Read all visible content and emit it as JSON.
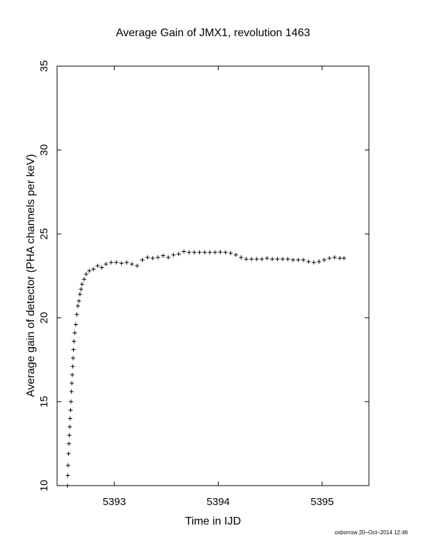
{
  "chart_data": {
    "type": "scatter",
    "title": "Average Gain of JMX1, revolution 1463",
    "xlabel": "Time in IJD",
    "ylabel": "Average gain of detector (PHA channels per keV)",
    "xlim": [
      5392.45,
      5395.45
    ],
    "ylim": [
      10,
      35
    ],
    "xticks": [
      5393,
      5394,
      5395
    ],
    "yticks": [
      10,
      15,
      20,
      25,
      30,
      35
    ],
    "marker": "plus",
    "grid": false,
    "legend": "none",
    "color": "#000000",
    "series": [
      {
        "points": [
          [
            5392.55,
            10.0
          ],
          [
            5392.553,
            10.6
          ],
          [
            5392.556,
            11.2
          ],
          [
            5392.56,
            11.9
          ],
          [
            5392.564,
            12.5
          ],
          [
            5392.568,
            13.0
          ],
          [
            5392.572,
            13.5
          ],
          [
            5392.576,
            14.0
          ],
          [
            5392.58,
            14.5
          ],
          [
            5392.584,
            15.0
          ],
          [
            5392.588,
            15.6
          ],
          [
            5392.592,
            16.1
          ],
          [
            5392.596,
            16.6
          ],
          [
            5392.6,
            17.1
          ],
          [
            5392.604,
            17.6
          ],
          [
            5392.608,
            18.1
          ],
          [
            5392.612,
            18.6
          ],
          [
            5392.62,
            19.1
          ],
          [
            5392.63,
            19.6
          ],
          [
            5392.64,
            20.2
          ],
          [
            5392.65,
            20.7
          ],
          [
            5392.66,
            21.0
          ],
          [
            5392.67,
            21.4
          ],
          [
            5392.68,
            21.7
          ],
          [
            5392.69,
            22.0
          ],
          [
            5392.71,
            22.3
          ],
          [
            5392.73,
            22.6
          ],
          [
            5392.76,
            22.8
          ],
          [
            5392.8,
            22.9
          ],
          [
            5392.84,
            23.1
          ],
          [
            5392.88,
            23.0
          ],
          [
            5392.92,
            23.2
          ],
          [
            5392.97,
            23.3
          ],
          [
            5393.02,
            23.3
          ],
          [
            5393.07,
            23.25
          ],
          [
            5393.12,
            23.3
          ],
          [
            5393.17,
            23.2
          ],
          [
            5393.22,
            23.1
          ],
          [
            5393.27,
            23.45
          ],
          [
            5393.32,
            23.6
          ],
          [
            5393.37,
            23.55
          ],
          [
            5393.42,
            23.6
          ],
          [
            5393.47,
            23.7
          ],
          [
            5393.52,
            23.6
          ],
          [
            5393.57,
            23.75
          ],
          [
            5393.62,
            23.8
          ],
          [
            5393.67,
            23.95
          ],
          [
            5393.72,
            23.9
          ],
          [
            5393.77,
            23.9
          ],
          [
            5393.82,
            23.9
          ],
          [
            5393.87,
            23.9
          ],
          [
            5393.92,
            23.9
          ],
          [
            5393.97,
            23.9
          ],
          [
            5394.02,
            23.92
          ],
          [
            5394.07,
            23.9
          ],
          [
            5394.12,
            23.85
          ],
          [
            5394.17,
            23.75
          ],
          [
            5394.22,
            23.6
          ],
          [
            5394.27,
            23.5
          ],
          [
            5394.32,
            23.5
          ],
          [
            5394.37,
            23.5
          ],
          [
            5394.42,
            23.5
          ],
          [
            5394.47,
            23.55
          ],
          [
            5394.52,
            23.5
          ],
          [
            5394.57,
            23.5
          ],
          [
            5394.62,
            23.5
          ],
          [
            5394.67,
            23.5
          ],
          [
            5394.72,
            23.45
          ],
          [
            5394.77,
            23.45
          ],
          [
            5394.82,
            23.45
          ],
          [
            5394.87,
            23.35
          ],
          [
            5394.92,
            23.3
          ],
          [
            5394.97,
            23.35
          ],
          [
            5395.02,
            23.45
          ],
          [
            5395.07,
            23.55
          ],
          [
            5395.12,
            23.6
          ],
          [
            5395.17,
            23.55
          ],
          [
            5395.21,
            23.55
          ]
        ]
      }
    ]
  },
  "footer": {
    "credit": "oxborrow 20–Oct–2014 12:46"
  }
}
